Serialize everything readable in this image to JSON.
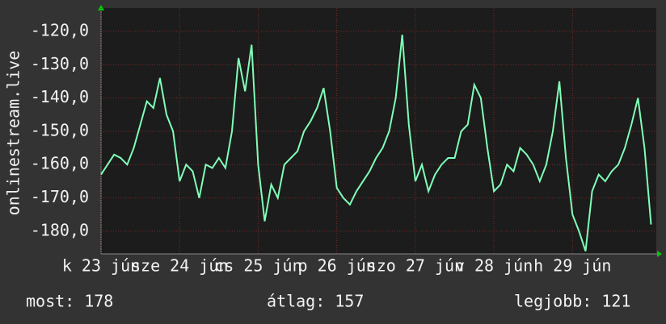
{
  "chart_data": {
    "type": "line",
    "y_axis_label": "onlinestream.live",
    "x": [
      0,
      2,
      4,
      6,
      8,
      10,
      12,
      14,
      16,
      18,
      20,
      22,
      24,
      26,
      28,
      30,
      32,
      34,
      36,
      38,
      40,
      42,
      44,
      46,
      48,
      50,
      52,
      54,
      56,
      58,
      60,
      62,
      64,
      66,
      68,
      70,
      72,
      74,
      76,
      78,
      80,
      82,
      84,
      86,
      88,
      90,
      92,
      94,
      96,
      98,
      100,
      102,
      104,
      106,
      108,
      110,
      112,
      114,
      116,
      118,
      120,
      122,
      124,
      126,
      128,
      130,
      132,
      134,
      136,
      138,
      140,
      142,
      144,
      146,
      148,
      150,
      152,
      154,
      156,
      158,
      160,
      162,
      164,
      166,
      168
    ],
    "series": [
      {
        "color": "#80ffb8",
        "values": [
          -163,
          -160,
          -157,
          -158,
          -160,
          -155,
          -148,
          -141,
          -143,
          -134,
          -145,
          -150,
          -165,
          -160,
          -162,
          -170,
          -160,
          -161,
          -158,
          -161,
          -150,
          -128,
          -138,
          -124,
          -160,
          -177,
          -166,
          -170,
          -160,
          -158,
          -156,
          -150,
          -147,
          -143,
          -137,
          -150,
          -167,
          -170,
          -172,
          -168,
          -165,
          -162,
          -158,
          -155,
          -150,
          -140,
          -121,
          -148,
          -165,
          -160,
          -168,
          -163,
          -160,
          -158,
          -158,
          -150,
          -148,
          -136,
          -140,
          -155,
          -168,
          -166,
          -160,
          -162,
          -155,
          -157,
          -160,
          -165,
          -160,
          -150,
          -135,
          -158,
          -175,
          -180,
          -186,
          -168,
          -163,
          -165,
          -162,
          -160,
          -155,
          -148,
          -140,
          -155,
          -178
        ]
      }
    ],
    "xlim": [
      0,
      169.6
    ],
    "xticks": [
      {
        "value": 0,
        "label": "k 23 jún"
      },
      {
        "value": 24,
        "label": "sze 24 jún"
      },
      {
        "value": 48,
        "label": "cs 25 jún"
      },
      {
        "value": 72,
        "label": "p 26 jún"
      },
      {
        "value": 96,
        "label": "szo 27 jún"
      },
      {
        "value": 120,
        "label": "v 28 jún"
      },
      {
        "value": 144,
        "label": "h 29 jún"
      }
    ],
    "ylim": [
      -186.8,
      -113
    ],
    "yticks": [
      {
        "value": -120,
        "label": "-120,0"
      },
      {
        "value": -130,
        "label": "-130,0"
      },
      {
        "value": -140,
        "label": "-140,0"
      },
      {
        "value": -150,
        "label": "-150,0"
      },
      {
        "value": -160,
        "label": "-160,0"
      },
      {
        "value": -170,
        "label": "-170,0"
      },
      {
        "value": -180,
        "label": "-180,0"
      }
    ],
    "grid": true,
    "stats": [
      {
        "label": "most:",
        "value": 178
      },
      {
        "label": "átlag:",
        "value": 157
      },
      {
        "label": "legjobb:",
        "value": 121
      }
    ]
  }
}
